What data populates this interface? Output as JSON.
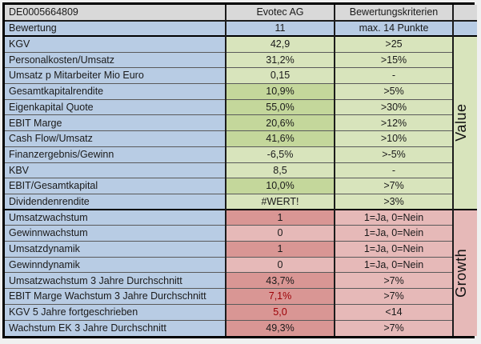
{
  "header": {
    "isin": "DE0005664809",
    "company": "Evotec AG",
    "criteria_title": "Bewertungskriterien"
  },
  "score": {
    "label": "Bewertung",
    "value": "11",
    "max_label": "max. 14 Punkte"
  },
  "sections": [
    {
      "key": "value",
      "name": "Value",
      "rows": [
        {
          "label": "KGV",
          "value": "42,9",
          "criteria": ">25",
          "met": false,
          "red_text": false
        },
        {
          "label": "Personalkosten/Umsatz",
          "value": "31,2%",
          "criteria": ">15%",
          "met": false,
          "red_text": false
        },
        {
          "label": "Umsatz p Mitarbeiter Mio Euro",
          "value": "0,15",
          "criteria": "-",
          "met": false,
          "red_text": false
        },
        {
          "label": "Gesamtkapitalrendite",
          "value": "10,9%",
          "criteria": ">5%",
          "met": true,
          "red_text": false
        },
        {
          "label": "Eigenkapital Quote",
          "value": "55,0%",
          "criteria": ">30%",
          "met": true,
          "red_text": false
        },
        {
          "label": "EBIT Marge",
          "value": "20,6%",
          "criteria": ">12%",
          "met": true,
          "red_text": false
        },
        {
          "label": "Cash Flow/Umsatz",
          "value": "41,6%",
          "criteria": ">10%",
          "met": true,
          "red_text": false
        },
        {
          "label": "Finanzergebnis/Gewinn",
          "value": "-6,5%",
          "criteria": ">-5%",
          "met": false,
          "red_text": false
        },
        {
          "label": "KBV",
          "value": "8,5",
          "criteria": "-",
          "met": false,
          "red_text": false
        },
        {
          "label": "EBIT/Gesamtkapital",
          "value": "10,0%",
          "criteria": ">7%",
          "met": true,
          "red_text": false
        },
        {
          "label": "Dividendenrendite",
          "value": "#WERT!",
          "criteria": ">3%",
          "met": false,
          "red_text": false
        }
      ]
    },
    {
      "key": "growth",
      "name": "Growth",
      "rows": [
        {
          "label": "Umsatzwachstum",
          "value": "1",
          "criteria": "1=Ja, 0=Nein",
          "met": true,
          "red_text": false
        },
        {
          "label": "Gewinnwachstum",
          "value": "0",
          "criteria": "1=Ja, 0=Nein",
          "met": false,
          "red_text": false
        },
        {
          "label": "Umsatzdynamik",
          "value": "1",
          "criteria": "1=Ja, 0=Nein",
          "met": true,
          "red_text": false
        },
        {
          "label": "Gewinndynamik",
          "value": "0",
          "criteria": "1=Ja, 0=Nein",
          "met": false,
          "red_text": false
        },
        {
          "label": "Umsatzwachstum 3 Jahre Durchschnitt",
          "value": "43,7%",
          "criteria": ">7%",
          "met": true,
          "red_text": false
        },
        {
          "label": "EBIT Marge Wachstum 3 Jahre Durchschnitt",
          "value": "7,1%",
          "criteria": ">7%",
          "met": true,
          "red_text": true
        },
        {
          "label": "KGV 5 Jahre fortgeschrieben",
          "value": "5,0",
          "criteria": "<14",
          "met": true,
          "red_text": true
        },
        {
          "label": "Wachstum EK 3 Jahre Durchschnitt",
          "value": "49,3%",
          "criteria": ">7%",
          "met": true,
          "red_text": false
        }
      ]
    }
  ],
  "colors": {
    "header_grey": "#d9d9d9",
    "row_blue": "#b8cce4",
    "value_light_green": "#d8e4bc",
    "value_dark_green": "#c4d79b",
    "growth_light_pink": "#e6b9b8",
    "growth_dark_pink": "#d99694",
    "negative_text_red": "#9c0006",
    "page_background": "#f0f0f0"
  }
}
